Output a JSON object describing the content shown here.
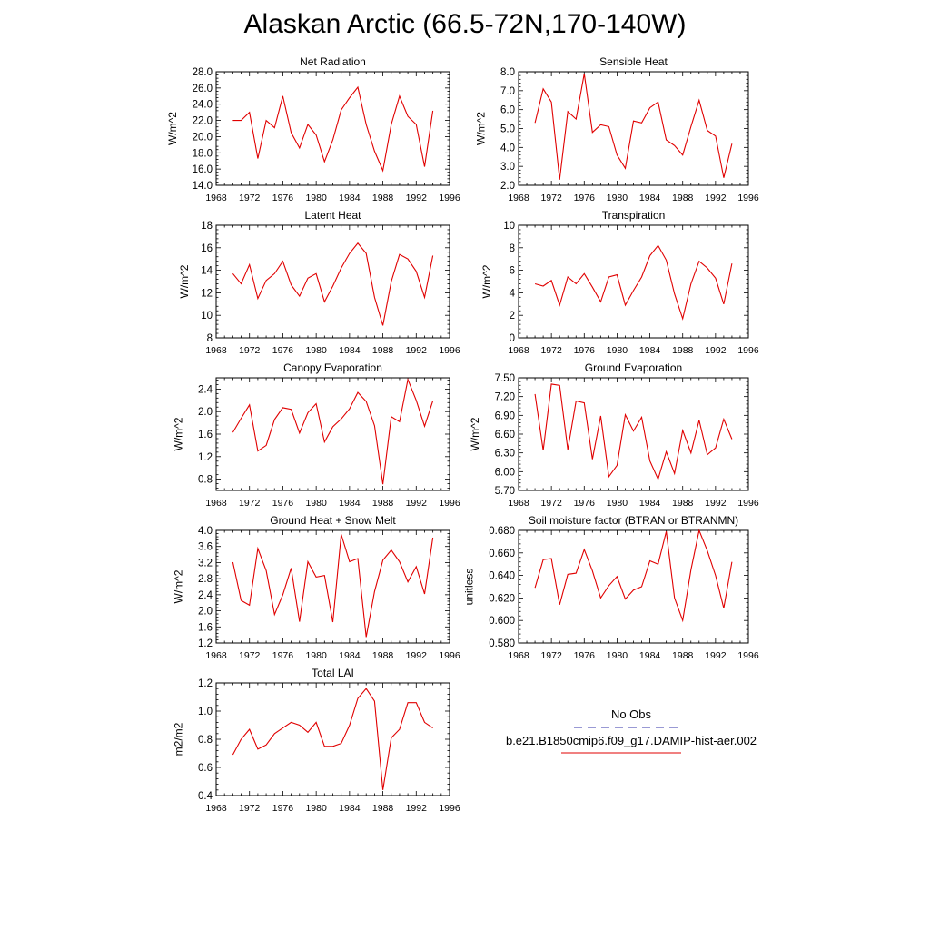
{
  "figure": {
    "title": "Alaskan Arctic (66.5-72N,170-140W)"
  },
  "legend": {
    "obs_label": "No Obs",
    "obs_color": "#3333aa",
    "model_label": "b.e21.B1850cmip6.f09_g17.DAMIP-hist-aer.002",
    "model_color": "#e00000"
  },
  "chart_data": [
    {
      "type": "line",
      "title": "Net Radiation",
      "ylabel": "W/m^2",
      "xlabel": "",
      "xlim": [
        1968,
        1996
      ],
      "ylim": [
        14,
        28
      ],
      "x_ticks": [
        1968,
        1972,
        1976,
        1980,
        1984,
        1988,
        1992,
        1996
      ],
      "y_ticks": [
        "14.0",
        "16.0",
        "18.0",
        "20.0",
        "22.0",
        "24.0",
        "26.0",
        "28.0"
      ],
      "series": [
        {
          "color": "#e00000",
          "x": [
            1970,
            1971,
            1972,
            1973,
            1974,
            1975,
            1976,
            1977,
            1978,
            1979,
            1980,
            1981,
            1982,
            1983,
            1984,
            1985,
            1986,
            1987,
            1988,
            1989,
            1990,
            1991,
            1992,
            1993,
            1994
          ],
          "y": [
            22.0,
            22.0,
            23.0,
            17.3,
            22.0,
            21.1,
            25.0,
            20.5,
            18.6,
            21.5,
            20.2,
            16.9,
            19.6,
            23.3,
            24.8,
            26.1,
            21.5,
            18.2,
            15.8,
            21.5,
            25.0,
            22.5,
            21.5,
            16.3,
            23.2
          ]
        }
      ]
    },
    {
      "type": "line",
      "title": "Sensible Heat",
      "ylabel": "W/m^2",
      "xlabel": "",
      "xlim": [
        1968,
        1996
      ],
      "ylim": [
        2,
        8
      ],
      "x_ticks": [
        1968,
        1972,
        1976,
        1980,
        1984,
        1988,
        1992,
        1996
      ],
      "y_ticks": [
        "2.0",
        "3.0",
        "4.0",
        "5.0",
        "6.0",
        "7.0",
        "8.0"
      ],
      "series": [
        {
          "color": "#e00000",
          "x": [
            1970,
            1971,
            1972,
            1973,
            1974,
            1975,
            1976,
            1977,
            1978,
            1979,
            1980,
            1981,
            1982,
            1983,
            1984,
            1985,
            1986,
            1987,
            1988,
            1989,
            1990,
            1991,
            1992,
            1993,
            1994
          ],
          "y": [
            5.3,
            7.1,
            6.4,
            2.3,
            5.9,
            5.5,
            7.9,
            4.8,
            5.2,
            5.1,
            3.6,
            2.9,
            5.4,
            5.3,
            6.1,
            6.4,
            4.4,
            4.1,
            3.6,
            5.1,
            6.5,
            4.9,
            4.6,
            2.4,
            4.2
          ]
        }
      ]
    },
    {
      "type": "line",
      "title": "Latent Heat",
      "ylabel": "W/m^2",
      "xlabel": "",
      "xlim": [
        1968,
        1996
      ],
      "ylim": [
        8,
        18
      ],
      "x_ticks": [
        1968,
        1972,
        1976,
        1980,
        1984,
        1988,
        1992,
        1996
      ],
      "y_ticks": [
        "8",
        "10",
        "12",
        "14",
        "16",
        "18"
      ],
      "series": [
        {
          "color": "#e00000",
          "x": [
            1970,
            1971,
            1972,
            1973,
            1974,
            1975,
            1976,
            1977,
            1978,
            1979,
            1980,
            1981,
            1982,
            1983,
            1984,
            1985,
            1986,
            1987,
            1988,
            1989,
            1990,
            1991,
            1992,
            1993,
            1994
          ],
          "y": [
            13.7,
            12.8,
            14.5,
            11.5,
            13.1,
            13.7,
            14.8,
            12.7,
            11.7,
            13.3,
            13.7,
            11.2,
            12.6,
            14.2,
            15.5,
            16.4,
            15.5,
            11.6,
            9.1,
            13.0,
            15.4,
            15.0,
            13.9,
            11.6,
            15.3
          ]
        }
      ]
    },
    {
      "type": "line",
      "title": "Transpiration",
      "ylabel": "W/m^2",
      "xlabel": "",
      "xlim": [
        1968,
        1996
      ],
      "ylim": [
        0,
        10
      ],
      "x_ticks": [
        1968,
        1972,
        1976,
        1980,
        1984,
        1988,
        1992,
        1996
      ],
      "y_ticks": [
        "0",
        "2",
        "4",
        "6",
        "8",
        "10"
      ],
      "series": [
        {
          "color": "#e00000",
          "x": [
            1970,
            1971,
            1972,
            1973,
            1974,
            1975,
            1976,
            1977,
            1978,
            1979,
            1980,
            1981,
            1982,
            1983,
            1984,
            1985,
            1986,
            1987,
            1988,
            1989,
            1990,
            1991,
            1992,
            1993,
            1994
          ],
          "y": [
            4.8,
            4.6,
            5.1,
            2.9,
            5.4,
            4.8,
            5.7,
            4.5,
            3.2,
            5.4,
            5.6,
            2.9,
            4.2,
            5.4,
            7.3,
            8.2,
            6.9,
            3.9,
            1.7,
            4.8,
            6.8,
            6.2,
            5.3,
            3.0,
            6.6
          ]
        }
      ]
    },
    {
      "type": "line",
      "title": "Canopy Evaporation",
      "ylabel": "W/m^2",
      "xlabel": "",
      "xlim": [
        1968,
        1996
      ],
      "ylim": [
        0.6,
        2.6
      ],
      "x_ticks": [
        1968,
        1972,
        1976,
        1980,
        1984,
        1988,
        1992,
        1996
      ],
      "y_ticks": [
        "0.8",
        "1.2",
        "1.6",
        "2.0",
        "2.4"
      ],
      "y_tick_values": [
        0.8,
        1.2,
        1.6,
        2.0,
        2.4
      ],
      "series": [
        {
          "color": "#e00000",
          "x": [
            1970,
            1971,
            1972,
            1973,
            1974,
            1975,
            1976,
            1977,
            1978,
            1979,
            1980,
            1981,
            1982,
            1983,
            1984,
            1985,
            1986,
            1987,
            1988,
            1989,
            1990,
            1991,
            1992,
            1993,
            1994
          ],
          "y": [
            1.63,
            1.88,
            2.12,
            1.3,
            1.4,
            1.86,
            2.07,
            2.04,
            1.62,
            1.98,
            2.14,
            1.46,
            1.73,
            1.87,
            2.05,
            2.34,
            2.18,
            1.75,
            0.71,
            1.91,
            1.82,
            2.57,
            2.2,
            1.74,
            2.19
          ]
        }
      ]
    },
    {
      "type": "line",
      "title": "Ground Evaporation",
      "ylabel": "W/m^2",
      "xlabel": "",
      "xlim": [
        1968,
        1996
      ],
      "ylim": [
        5.7,
        7.5
      ],
      "x_ticks": [
        1968,
        1972,
        1976,
        1980,
        1984,
        1988,
        1992,
        1996
      ],
      "y_ticks": [
        "5.70",
        "6.00",
        "6.30",
        "6.60",
        "6.90",
        "7.20",
        "7.50"
      ],
      "series": [
        {
          "color": "#e00000",
          "x": [
            1970,
            1971,
            1972,
            1973,
            1974,
            1975,
            1976,
            1977,
            1978,
            1979,
            1980,
            1981,
            1982,
            1983,
            1984,
            1985,
            1986,
            1987,
            1988,
            1989,
            1990,
            1991,
            1992,
            1993,
            1994
          ],
          "y": [
            7.24,
            6.34,
            7.4,
            7.38,
            6.35,
            7.13,
            7.1,
            6.2,
            6.89,
            5.92,
            6.1,
            6.91,
            6.65,
            6.87,
            6.17,
            5.88,
            6.32,
            5.97,
            6.66,
            6.3,
            6.82,
            6.27,
            6.38,
            6.84,
            6.52
          ]
        }
      ]
    },
    {
      "type": "line",
      "title": "Ground Heat + Snow Melt",
      "ylabel": "W/m^2",
      "xlabel": "",
      "xlim": [
        1968,
        1996
      ],
      "ylim": [
        1.2,
        4.0
      ],
      "x_ticks": [
        1968,
        1972,
        1976,
        1980,
        1984,
        1988,
        1992,
        1996
      ],
      "y_ticks": [
        "1.2",
        "1.6",
        "2.0",
        "2.4",
        "2.8",
        "3.2",
        "3.6",
        "4.0"
      ],
      "series": [
        {
          "color": "#e00000",
          "x": [
            1970,
            1971,
            1972,
            1973,
            1974,
            1975,
            1976,
            1977,
            1978,
            1979,
            1980,
            1981,
            1982,
            1983,
            1984,
            1985,
            1986,
            1987,
            1988,
            1989,
            1990,
            1991,
            1992,
            1993,
            1994
          ],
          "y": [
            3.21,
            2.26,
            2.14,
            3.55,
            3.0,
            1.91,
            2.4,
            3.06,
            1.73,
            3.22,
            2.84,
            2.88,
            1.72,
            3.9,
            3.22,
            3.3,
            1.35,
            2.48,
            3.26,
            3.51,
            3.22,
            2.72,
            3.1,
            2.42,
            3.82
          ]
        }
      ]
    },
    {
      "type": "line",
      "title": "Soil moisture factor (BTRAN or BTRANMN)",
      "ylabel": "unitless",
      "xlabel": "",
      "xlim": [
        1968,
        1996
      ],
      "ylim": [
        0.58,
        0.68
      ],
      "x_ticks": [
        1968,
        1972,
        1976,
        1980,
        1984,
        1988,
        1992,
        1996
      ],
      "y_ticks": [
        "0.580",
        "0.600",
        "0.620",
        "0.640",
        "0.660",
        "0.680"
      ],
      "series": [
        {
          "color": "#e00000",
          "x": [
            1970,
            1971,
            1972,
            1973,
            1974,
            1975,
            1976,
            1977,
            1978,
            1979,
            1980,
            1981,
            1982,
            1983,
            1984,
            1985,
            1986,
            1987,
            1988,
            1989,
            1990,
            1991,
            1992,
            1993,
            1994
          ],
          "y": [
            0.629,
            0.654,
            0.655,
            0.614,
            0.641,
            0.642,
            0.663,
            0.644,
            0.62,
            0.631,
            0.639,
            0.619,
            0.627,
            0.63,
            0.653,
            0.65,
            0.679,
            0.62,
            0.6,
            0.645,
            0.68,
            0.662,
            0.64,
            0.611,
            0.652
          ]
        }
      ]
    },
    {
      "type": "line",
      "title": "Total LAI",
      "ylabel": "m2/m2",
      "xlabel": "",
      "xlim": [
        1968,
        1996
      ],
      "ylim": [
        0.4,
        1.2
      ],
      "x_ticks": [
        1968,
        1972,
        1976,
        1980,
        1984,
        1988,
        1992,
        1996
      ],
      "y_ticks": [
        "0.4",
        "0.6",
        "0.8",
        "1.0",
        "1.2"
      ],
      "series": [
        {
          "color": "#e00000",
          "x": [
            1970,
            1971,
            1972,
            1973,
            1974,
            1975,
            1976,
            1977,
            1978,
            1979,
            1980,
            1981,
            1982,
            1983,
            1984,
            1985,
            1986,
            1987,
            1988,
            1989,
            1990,
            1991,
            1992,
            1993,
            1994
          ],
          "y": [
            0.69,
            0.8,
            0.87,
            0.73,
            0.76,
            0.84,
            0.88,
            0.92,
            0.9,
            0.85,
            0.92,
            0.75,
            0.75,
            0.77,
            0.9,
            1.09,
            1.16,
            1.07,
            0.44,
            0.81,
            0.87,
            1.06,
            1.06,
            0.92,
            0.88
          ]
        }
      ]
    }
  ]
}
